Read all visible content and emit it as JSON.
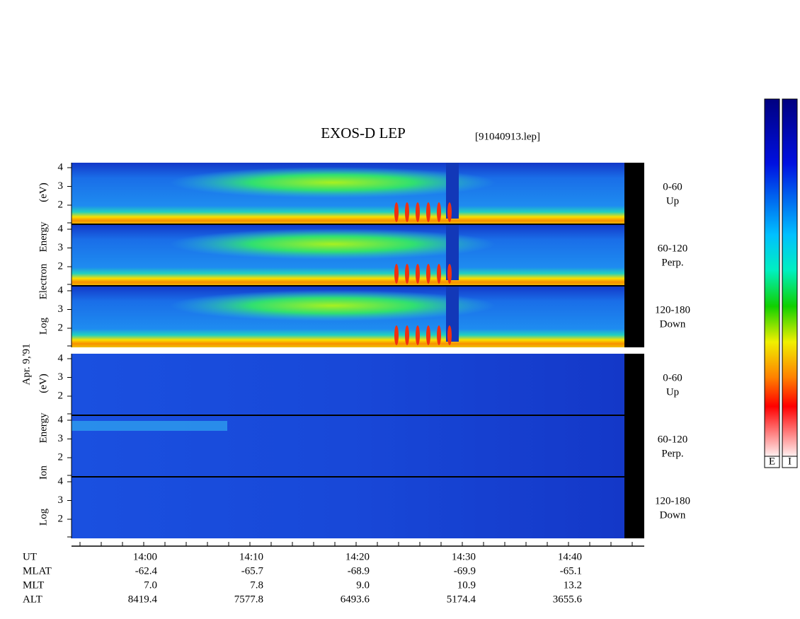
{
  "header": {
    "title": "EXOS-D LEP",
    "file": "[91040913.lep]"
  },
  "date": "Apr. 9,'91",
  "blocks": [
    {
      "axis_label": [
        "Log",
        "Electron",
        "Energy",
        "(eV)"
      ],
      "panels": [
        {
          "ticks": [
            "4",
            "3",
            "2"
          ],
          "right": [
            "0-60",
            "Up"
          ]
        },
        {
          "ticks": [
            "4",
            "3",
            "2"
          ],
          "right": [
            "60-120",
            "Perp."
          ]
        },
        {
          "ticks": [
            "4",
            "3",
            "2"
          ],
          "right": [
            "120-180",
            "Down"
          ]
        }
      ]
    },
    {
      "axis_label": [
        "Log",
        "Ion",
        "Energy",
        "(eV)"
      ],
      "panels": [
        {
          "ticks": [
            "4",
            "3",
            "2"
          ],
          "right": [
            "0-60",
            "Up"
          ]
        },
        {
          "ticks": [
            "4",
            "3",
            "2"
          ],
          "right": [
            "60-120",
            "Perp."
          ]
        },
        {
          "ticks": [
            "4",
            "3",
            "2"
          ],
          "right": [
            "120-180",
            "Down"
          ]
        }
      ]
    }
  ],
  "orbit": {
    "labels": [
      "UT",
      "MLAT",
      "MLT",
      "ALT"
    ],
    "columns": [
      [
        "14:00",
        "-62.4",
        "7.0",
        "8419.4"
      ],
      [
        "14:10",
        "-65.7",
        "7.8",
        "7577.8"
      ],
      [
        "14:20",
        "-68.9",
        "9.0",
        "6493.6"
      ],
      [
        "14:30",
        "-69.9",
        "10.9",
        "5174.4"
      ],
      [
        "14:40",
        "-65.1",
        "13.2",
        "3655.6"
      ]
    ]
  },
  "colorbars": [
    "E",
    "I"
  ]
}
